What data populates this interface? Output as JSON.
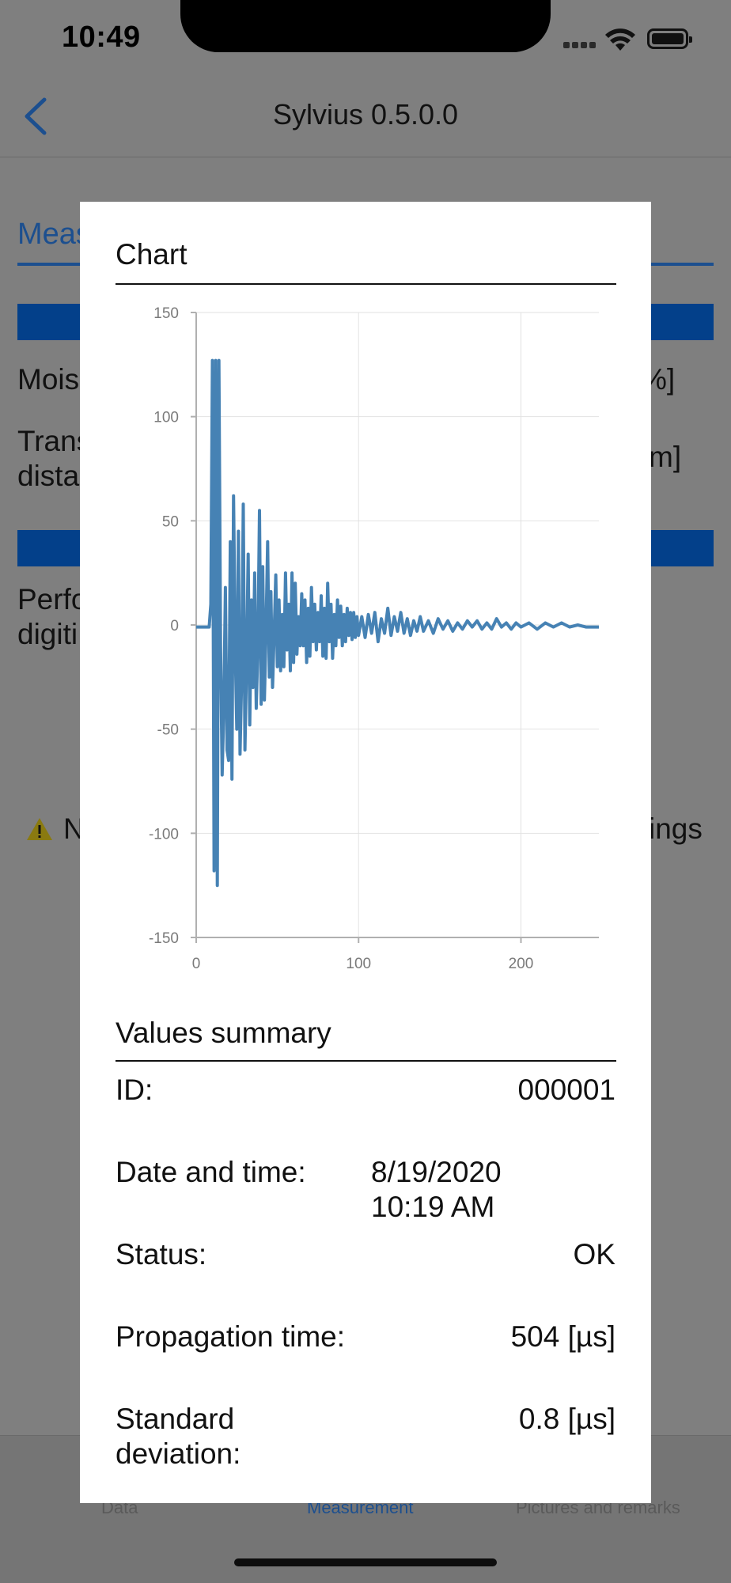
{
  "status_bar": {
    "time": "10:49"
  },
  "nav": {
    "title": "Sylvius 0.5.0.0"
  },
  "background": {
    "tab_label": "Meas",
    "moisture_label": "Mois",
    "moisture_unit": "%]",
    "transmission_label_1": "Trans",
    "transmission_label_2": "dista",
    "transmission_unit": "m]",
    "perform_label_1": "Perfo",
    "perform_label_2": "digiti",
    "warning_left": "N",
    "warning_right": "ings"
  },
  "bottom_tabs": [
    {
      "label": "Data"
    },
    {
      "label": "Measurement"
    },
    {
      "label": "Pictures and remarks"
    }
  ],
  "colors": {
    "accent": "#1c4f8f",
    "series": "#4682b4",
    "overlay": "#7f7f7f"
  },
  "modal": {
    "chart_title": "Chart",
    "summary_title": "Values summary",
    "rows": [
      {
        "label": "ID:",
        "value": "000001"
      },
      {
        "label": "Date and time:",
        "value_line1": "8/19/2020",
        "value_line2": "10:19 AM"
      },
      {
        "label": "Status:",
        "value": "OK"
      },
      {
        "label": "Propagation time:",
        "value": "504 [µs]"
      },
      {
        "label_line1": "Standard",
        "label_line2": "deviation:",
        "value": "0.8 [µs]"
      }
    ]
  },
  "chart_data": {
    "type": "line",
    "xlim": [
      0,
      248
    ],
    "ylim": [
      -150,
      150
    ],
    "x_ticks": [
      "0",
      "100",
      "200"
    ],
    "y_ticks": [
      "150",
      "100",
      "50",
      "0",
      "-50",
      "-100",
      "-150"
    ],
    "grid": true,
    "series": [
      {
        "color": "#4682b4",
        "x": [
          0,
          8,
          9,
          10,
          11,
          12,
          13,
          14,
          15,
          16,
          17,
          18,
          19,
          20,
          21,
          22,
          23,
          24,
          25,
          26,
          27,
          28,
          29,
          30,
          31,
          32,
          33,
          34,
          35,
          36,
          37,
          38,
          39,
          40,
          41,
          42,
          43,
          44,
          45,
          46,
          47,
          48,
          49,
          50,
          51,
          52,
          53,
          54,
          55,
          56,
          57,
          58,
          59,
          60,
          61,
          62,
          63,
          64,
          65,
          66,
          67,
          68,
          69,
          70,
          71,
          72,
          73,
          74,
          75,
          76,
          77,
          78,
          79,
          80,
          81,
          82,
          83,
          84,
          85,
          86,
          87,
          88,
          89,
          90,
          91,
          92,
          93,
          94,
          95,
          96,
          97,
          98,
          99,
          100,
          102,
          104,
          106,
          108,
          110,
          112,
          114,
          116,
          118,
          120,
          122,
          124,
          126,
          128,
          130,
          132,
          134,
          136,
          138,
          140,
          143,
          146,
          149,
          152,
          155,
          158,
          161,
          164,
          167,
          170,
          173,
          176,
          179,
          182,
          185,
          188,
          191,
          194,
          197,
          200,
          205,
          210,
          215,
          220,
          225,
          230,
          235,
          240,
          248
        ],
        "y": [
          -1,
          -1,
          10,
          127,
          -118,
          127,
          -125,
          127,
          -10,
          -72,
          -40,
          18,
          -60,
          -65,
          40,
          -74,
          62,
          -10,
          -50,
          45,
          -62,
          -25,
          58,
          -60,
          -20,
          34,
          -48,
          12,
          -30,
          25,
          -40,
          -10,
          55,
          -38,
          28,
          -36,
          -2,
          40,
          -25,
          16,
          -30,
          -5,
          24,
          -20,
          12,
          -22,
          5,
          -20,
          25,
          -12,
          10,
          -22,
          25,
          -18,
          20,
          -14,
          4,
          -10,
          15,
          -10,
          12,
          -18,
          8,
          -15,
          18,
          -8,
          10,
          -12,
          6,
          -8,
          14,
          -15,
          8,
          -16,
          20,
          -8,
          10,
          -16,
          5,
          -10,
          12,
          -6,
          9,
          -10,
          5,
          -8,
          8,
          -5,
          6,
          -7,
          6,
          -6,
          4,
          -5,
          4,
          -6,
          5,
          -4,
          6,
          -8,
          3,
          -4,
          8,
          -5,
          4,
          -3,
          6,
          -4,
          3,
          -5,
          2,
          -3,
          4,
          -3,
          2,
          -4,
          3,
          -2,
          2,
          -3,
          1,
          -2,
          2,
          -1,
          2,
          -2,
          1,
          -2,
          3,
          -1,
          1,
          -2,
          1,
          -1,
          1,
          -2,
          1,
          -1,
          1,
          -1,
          0,
          -1,
          -1
        ]
      }
    ]
  }
}
